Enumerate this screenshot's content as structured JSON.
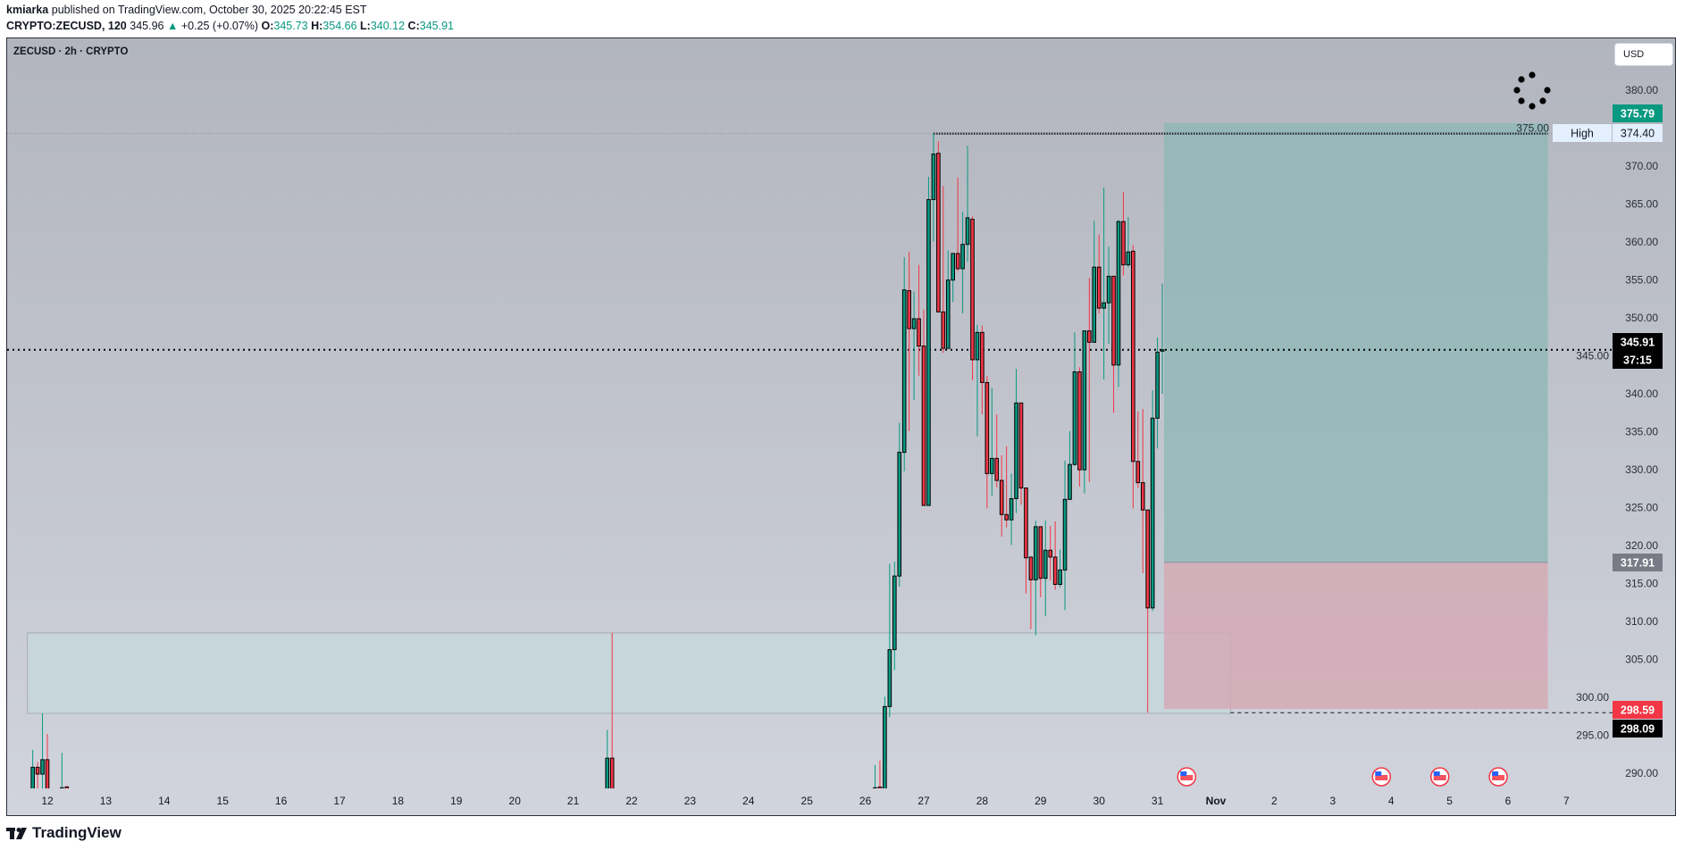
{
  "header": {
    "publisher": "kmiarka",
    "published_text": "published on TradingView.com, October 30, 2025 20:22:45 EST",
    "symbol_full": "CRYPTO:ZECUSD, 120",
    "last": "345.96",
    "change": "+0.25 (+0.07%)",
    "o_label": "O:",
    "o": "345.73",
    "h_label": "H:",
    "h": "354.66",
    "l_label": "L:",
    "l": "340.12",
    "c_label": "C:",
    "c": "345.91",
    "up_arrow_icon": "triangle-up"
  },
  "chart_header": {
    "symbol": "ZECUSD · 2h · CRYPTO"
  },
  "currency_button": "USD",
  "colors": {
    "up": "#089981",
    "down": "#f23645",
    "target": "#089981",
    "stop": "#f23645",
    "entry": "#787b86"
  },
  "chart_data": {
    "type": "candlestick",
    "interval": "2h",
    "ylim": [
      288,
      384
    ],
    "y_ticks": [
      "290.00",
      "295.00",
      "300.00",
      "305.00",
      "310.00",
      "315.00",
      "320.00",
      "325.00",
      "330.00",
      "335.00",
      "340.00",
      "345.00",
      "350.00",
      "355.00",
      "360.00",
      "365.00",
      "370.00",
      "375.00",
      "380.00"
    ],
    "x_ticks": [
      {
        "label": "12",
        "date": "2025-10-12"
      },
      {
        "label": "13",
        "date": "2025-10-13"
      },
      {
        "label": "14",
        "date": "2025-10-14"
      },
      {
        "label": "15",
        "date": "2025-10-15"
      },
      {
        "label": "16",
        "date": "2025-10-16"
      },
      {
        "label": "17",
        "date": "2025-10-17"
      },
      {
        "label": "18",
        "date": "2025-10-18"
      },
      {
        "label": "19",
        "date": "2025-10-19"
      },
      {
        "label": "20",
        "date": "2025-10-20"
      },
      {
        "label": "21",
        "date": "2025-10-21"
      },
      {
        "label": "22",
        "date": "2025-10-22"
      },
      {
        "label": "23",
        "date": "2025-10-23"
      },
      {
        "label": "24",
        "date": "2025-10-24"
      },
      {
        "label": "25",
        "date": "2025-10-25"
      },
      {
        "label": "26",
        "date": "2025-10-26"
      },
      {
        "label": "27",
        "date": "2025-10-27"
      },
      {
        "label": "28",
        "date": "2025-10-28"
      },
      {
        "label": "29",
        "date": "2025-10-29"
      },
      {
        "label": "30",
        "date": "2025-10-30"
      },
      {
        "label": "31",
        "date": "2025-10-31"
      },
      {
        "label": "Nov",
        "date": "2025-11-01",
        "bold": true
      },
      {
        "label": "2",
        "date": "2025-11-02"
      },
      {
        "label": "3",
        "date": "2025-11-03"
      },
      {
        "label": "4",
        "date": "2025-11-04"
      },
      {
        "label": "5",
        "date": "2025-11-05"
      },
      {
        "label": "6",
        "date": "2025-11-06"
      },
      {
        "label": "7",
        "date": "2025-11-07"
      }
    ],
    "candles": [
      [
        "2025-10-11 18:00",
        287.5,
        293.2,
        287.5,
        290.9
      ],
      [
        "2025-10-11 20:00",
        290.9,
        291.6,
        287.5,
        290.0
      ],
      [
        "2025-10-11 22:00",
        290.0,
        298.0,
        287.5,
        291.9
      ],
      [
        "2025-10-12 00:00",
        291.9,
        295.3,
        287.5,
        287.5
      ],
      [
        "2025-10-12 06:00",
        288.0,
        292.8,
        287.8,
        288.2
      ],
      [
        "2025-10-12 08:00",
        288.3,
        288.5,
        287.8,
        288.0
      ],
      [
        "2025-10-21 14:00",
        287.5,
        295.8,
        287.5,
        292.1
      ],
      [
        "2025-10-21 16:00",
        292.1,
        308.6,
        287.5,
        287.5
      ],
      [
        "2025-10-26 04:00",
        288.0,
        291.2,
        287.6,
        288.2
      ],
      [
        "2025-10-26 06:00",
        288.3,
        291.8,
        287.6,
        288.0
      ],
      [
        "2025-10-26 08:00",
        287.5,
        300.2,
        287.0,
        298.9
      ],
      [
        "2025-10-26 10:00",
        298.9,
        317.7,
        297.5,
        306.4
      ],
      [
        "2025-10-26 12:00",
        306.4,
        318.0,
        303.7,
        316.1
      ],
      [
        "2025-10-26 14:00",
        316.1,
        336.3,
        314.7,
        332.4
      ],
      [
        "2025-10-26 16:00",
        332.4,
        358.1,
        329.9,
        353.8
      ],
      [
        "2025-10-26 18:00",
        353.7,
        358.8,
        335.2,
        348.7
      ],
      [
        "2025-10-26 20:00",
        348.7,
        353.6,
        339.3,
        350.0
      ],
      [
        "2025-10-26 22:00",
        350.0,
        357.1,
        342.5,
        346.4
      ],
      [
        "2025-10-27 00:00",
        346.4,
        351.2,
        325.4,
        325.4
      ],
      [
        "2025-10-27 02:00",
        325.4,
        368.7,
        325.4,
        365.7
      ],
      [
        "2025-10-27 04:00",
        365.7,
        374.4,
        360.2,
        371.7
      ],
      [
        "2025-10-27 06:00",
        371.8,
        373.4,
        350.9,
        350.9
      ],
      [
        "2025-10-27 08:00",
        350.9,
        367.5,
        345.5,
        346.1
      ],
      [
        "2025-10-27 10:00",
        346.1,
        359.0,
        346.1,
        355.1
      ],
      [
        "2025-10-27 12:00",
        355.1,
        358.6,
        352.2,
        358.6
      ],
      [
        "2025-10-27 14:00",
        358.6,
        368.6,
        356.3,
        356.6
      ],
      [
        "2025-10-27 16:00",
        356.6,
        364.1,
        350.7,
        359.8
      ],
      [
        "2025-10-27 18:00",
        359.8,
        372.8,
        357.5,
        363.3
      ],
      [
        "2025-10-27 20:00",
        363.1,
        363.5,
        341.9,
        344.6
      ],
      [
        "2025-10-27 22:00",
        344.6,
        349.2,
        334.5,
        348.2
      ],
      [
        "2025-10-28 00:00",
        348.2,
        349.1,
        337.4,
        341.6
      ],
      [
        "2025-10-28 02:00",
        341.6,
        342.5,
        325.0,
        329.6
      ],
      [
        "2025-10-28 04:00",
        329.6,
        340.9,
        326.7,
        331.6
      ],
      [
        "2025-10-28 06:00",
        331.6,
        337.4,
        327.8,
        328.7
      ],
      [
        "2025-10-28 08:00",
        328.7,
        332.0,
        321.3,
        324.2
      ],
      [
        "2025-10-28 10:00",
        324.2,
        333.2,
        322.5,
        323.5
      ],
      [
        "2025-10-28 12:00",
        323.5,
        329.6,
        320.2,
        326.3
      ],
      [
        "2025-10-28 14:00",
        326.3,
        343.4,
        324.4,
        338.9
      ],
      [
        "2025-10-28 16:00",
        338.9,
        338.9,
        325.5,
        327.7
      ],
      [
        "2025-10-28 18:00",
        327.7,
        327.7,
        313.8,
        318.5
      ],
      [
        "2025-10-28 20:00",
        318.6,
        318.6,
        309.1,
        315.6
      ],
      [
        "2025-10-28 22:00",
        315.6,
        323.4,
        308.3,
        322.6
      ],
      [
        "2025-10-29 00:00",
        322.6,
        322.6,
        313.3,
        315.8
      ],
      [
        "2025-10-29 02:00",
        315.8,
        323.4,
        310.8,
        319.5
      ],
      [
        "2025-10-29 04:00",
        319.5,
        322.7,
        315.5,
        318.6
      ],
      [
        "2025-10-29 06:00",
        318.6,
        323.3,
        314.3,
        315.0
      ],
      [
        "2025-10-29 08:00",
        315.0,
        319.6,
        314.6,
        316.9
      ],
      [
        "2025-10-29 10:00",
        316.9,
        331.3,
        311.6,
        326.2
      ],
      [
        "2025-10-29 12:00",
        326.2,
        335.2,
        326.2,
        330.8
      ],
      [
        "2025-10-29 14:00",
        330.8,
        348.2,
        330.6,
        343.0
      ],
      [
        "2025-10-29 16:00",
        343.0,
        343.6,
        327.9,
        330.1
      ],
      [
        "2025-10-29 18:00",
        330.1,
        348.4,
        327.0,
        348.4
      ],
      [
        "2025-10-29 20:00",
        348.4,
        355.4,
        328.5,
        346.9
      ],
      [
        "2025-10-29 22:00",
        346.9,
        362.9,
        346.9,
        356.8
      ],
      [
        "2025-10-30 00:00",
        356.8,
        361.1,
        350.7,
        351.4
      ],
      [
        "2025-10-30 02:00",
        351.4,
        367.3,
        342.0,
        352.1
      ],
      [
        "2025-10-30 04:00",
        352.1,
        359.5,
        346.7,
        355.6
      ],
      [
        "2025-10-30 06:00",
        355.6,
        355.6,
        337.6,
        343.9
      ],
      [
        "2025-10-30 08:00",
        343.9,
        363.0,
        341.0,
        362.8
      ],
      [
        "2025-10-30 10:00",
        362.8,
        366.7,
        355.7,
        357.1
      ],
      [
        "2025-10-30 12:00",
        357.1,
        363.4,
        356.8,
        358.8
      ],
      [
        "2025-10-30 14:00",
        358.9,
        359.7,
        325.0,
        331.2
      ],
      [
        "2025-10-30 16:00",
        331.2,
        337.8,
        327.7,
        328.4
      ],
      [
        "2025-10-30 18:00",
        328.4,
        338.1,
        316.5,
        324.8
      ],
      [
        "2025-10-30 20:00",
        324.8,
        324.8,
        298.09,
        311.9
      ],
      [
        "2025-10-30 22:00",
        311.9,
        340.6,
        311.5,
        336.9
      ],
      [
        "2025-10-31 00:00",
        336.9,
        347.5,
        332.9,
        345.6
      ],
      [
        "2025-10-31 02:00",
        345.73,
        354.66,
        340.12,
        345.91
      ]
    ],
    "demand_zone": {
      "from": "2025-10-11 18:00",
      "to": "2025-11-01 06:00",
      "top": 308.6,
      "bottom": 298.0
    },
    "long_position": {
      "from": "2025-10-31 02:00",
      "to": "2025-11-06 16:00",
      "target": 375.79,
      "entry": 317.91,
      "stop": 298.59
    },
    "high_line": {
      "from": "2025-10-27 04:00",
      "to": "2025-11-06 16:00",
      "price": 374.4
    },
    "low_line": {
      "from": "2025-11-01 06:00",
      "price": 298.09
    },
    "current_price": 345.91,
    "economic_events": [
      "2025-10-31 12:00",
      "2025-11-03 20:00",
      "2025-11-04 20:00",
      "2025-11-05 20:00"
    ]
  },
  "axis_labels": {
    "target": "375.79",
    "high_tag": "High",
    "high": "374.40",
    "last_price": "345.91",
    "countdown": "37:15",
    "entry": "317.91",
    "stop": "298.59",
    "low": "298.09"
  },
  "footer": {
    "logo_text": "TradingView"
  }
}
